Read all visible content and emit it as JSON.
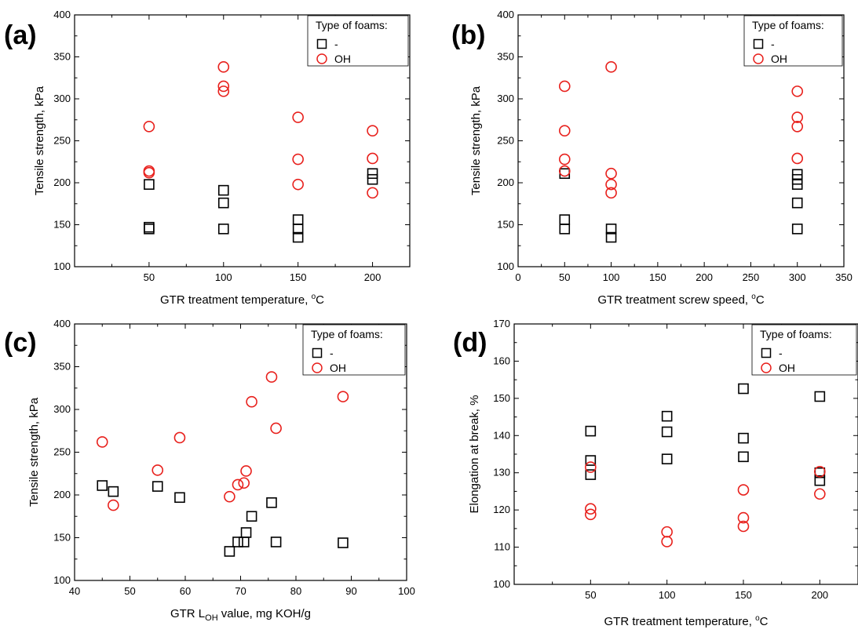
{
  "chart_data": [
    {
      "panel": "(a)",
      "type": "scatter",
      "xlabel": "GTR treatment temperature, °C",
      "ylabel": "Tensile strength, kPa",
      "xlim": [
        0,
        225
      ],
      "ylim": [
        100,
        400
      ],
      "xticks": [
        50,
        100,
        150,
        200
      ],
      "yticks": [
        100,
        150,
        200,
        250,
        300,
        350,
        400
      ],
      "legend_title": "Type of foams:",
      "legend_position": "top-right",
      "series": [
        {
          "name": "-",
          "marker": "square",
          "color": "#000000",
          "points": [
            [
              50,
              198
            ],
            [
              50,
              147
            ],
            [
              50,
              145
            ],
            [
              100,
              191
            ],
            [
              100,
              176
            ],
            [
              100,
              145
            ],
            [
              150,
              156
            ],
            [
              150,
              145
            ],
            [
              150,
              135
            ],
            [
              200,
              211
            ],
            [
              200,
              204
            ]
          ]
        },
        {
          "name": "OH",
          "marker": "circle",
          "color": "#e8201c",
          "points": [
            [
              50,
              267
            ],
            [
              50,
              214
            ],
            [
              50,
              212
            ],
            [
              100,
              338
            ],
            [
              100,
              315
            ],
            [
              100,
              309
            ],
            [
              150,
              278
            ],
            [
              150,
              228
            ],
            [
              150,
              198
            ],
            [
              200,
              262
            ],
            [
              200,
              229
            ],
            [
              200,
              188
            ]
          ]
        }
      ]
    },
    {
      "panel": "(b)",
      "type": "scatter",
      "xlabel": "GTR treatment screw speed, °C",
      "ylabel": "Tensile strength, kPa",
      "xlim": [
        0,
        350
      ],
      "ylim": [
        100,
        400
      ],
      "xticks": [
        0,
        50,
        100,
        150,
        200,
        250,
        300,
        350
      ],
      "yticks": [
        100,
        150,
        200,
        250,
        300,
        350,
        400
      ],
      "legend_title": "Type of foams:",
      "legend_position": "top-right",
      "series": [
        {
          "name": "-",
          "marker": "square",
          "color": "#000000",
          "points": [
            [
              50,
              211
            ],
            [
              50,
              156
            ],
            [
              50,
              145
            ],
            [
              100,
              145
            ],
            [
              100,
              135
            ],
            [
              300,
              210
            ],
            [
              300,
              204
            ],
            [
              300,
              198
            ],
            [
              300,
              176
            ],
            [
              300,
              145
            ]
          ]
        },
        {
          "name": "OH",
          "marker": "circle",
          "color": "#e8201c",
          "points": [
            [
              50,
              315
            ],
            [
              50,
              262
            ],
            [
              50,
              228
            ],
            [
              50,
              214
            ],
            [
              100,
              338
            ],
            [
              100,
              211
            ],
            [
              100,
              198
            ],
            [
              100,
              188
            ],
            [
              300,
              309
            ],
            [
              300,
              278
            ],
            [
              300,
              267
            ],
            [
              300,
              229
            ]
          ]
        }
      ]
    },
    {
      "panel": "(c)",
      "type": "scatter",
      "xlabel_prefix": "GTR L",
      "xlabel_sub": "OH",
      "xlabel_suffix": " value, mg KOH/g",
      "ylabel": "Tensile strength, kPa",
      "xlim": [
        40,
        100
      ],
      "ylim": [
        100,
        400
      ],
      "xticks": [
        40,
        50,
        60,
        70,
        80,
        90,
        100
      ],
      "yticks": [
        100,
        150,
        200,
        250,
        300,
        350,
        400
      ],
      "legend_title": "Type of foams:",
      "legend_position": "top-right",
      "series": [
        {
          "name": "-",
          "marker": "square",
          "color": "#000000",
          "points": [
            [
              45,
              211
            ],
            [
              47,
              204
            ],
            [
              55,
              210
            ],
            [
              59,
              197
            ],
            [
              68,
              134
            ],
            [
              69.5,
              145
            ],
            [
              70.6,
              145
            ],
            [
              71,
              156
            ],
            [
              72,
              175
            ],
            [
              75.6,
              191
            ],
            [
              76.4,
              145
            ],
            [
              88.5,
              144
            ]
          ]
        },
        {
          "name": "OH",
          "marker": "circle",
          "color": "#e8201c",
          "points": [
            [
              45,
              262
            ],
            [
              47,
              188
            ],
            [
              55,
              229
            ],
            [
              59,
              267
            ],
            [
              68,
              198
            ],
            [
              69.5,
              212
            ],
            [
              70.6,
              214
            ],
            [
              71,
              228
            ],
            [
              72,
              309
            ],
            [
              75.6,
              338
            ],
            [
              76.4,
              278
            ],
            [
              88.5,
              315
            ]
          ]
        }
      ]
    },
    {
      "panel": "(d)",
      "type": "scatter",
      "xlabel": "GTR treatment temperature, °C",
      "ylabel": "Elongation at break, %",
      "xlim": [
        0,
        225
      ],
      "ylim": [
        100,
        170
      ],
      "xticks": [
        50,
        100,
        150,
        200
      ],
      "yticks": [
        100,
        110,
        120,
        130,
        140,
        150,
        160,
        170
      ],
      "legend_title": "Type of foams:",
      "legend_position": "top-right",
      "series": [
        {
          "name": "-",
          "marker": "square",
          "color": "#000000",
          "points": [
            [
              50,
              141.2
            ],
            [
              50,
              133.3
            ],
            [
              50,
              129.5
            ],
            [
              100,
              145.2
            ],
            [
              100,
              141
            ],
            [
              100,
              133.7
            ],
            [
              150,
              152.6
            ],
            [
              150,
              139.3
            ],
            [
              150,
              134.3
            ],
            [
              200,
              150.5
            ],
            [
              200,
              130
            ],
            [
              200,
              127.9
            ]
          ]
        },
        {
          "name": "OH",
          "marker": "circle",
          "color": "#e8201c",
          "points": [
            [
              50,
              131.5
            ],
            [
              50,
              120.3
            ],
            [
              50,
              118.8
            ],
            [
              100,
              114.1
            ],
            [
              100,
              111.5
            ],
            [
              150,
              125.4
            ],
            [
              150,
              117.9
            ],
            [
              150,
              115.6
            ],
            [
              200,
              130.3
            ],
            [
              200,
              124.3
            ]
          ]
        }
      ]
    }
  ]
}
